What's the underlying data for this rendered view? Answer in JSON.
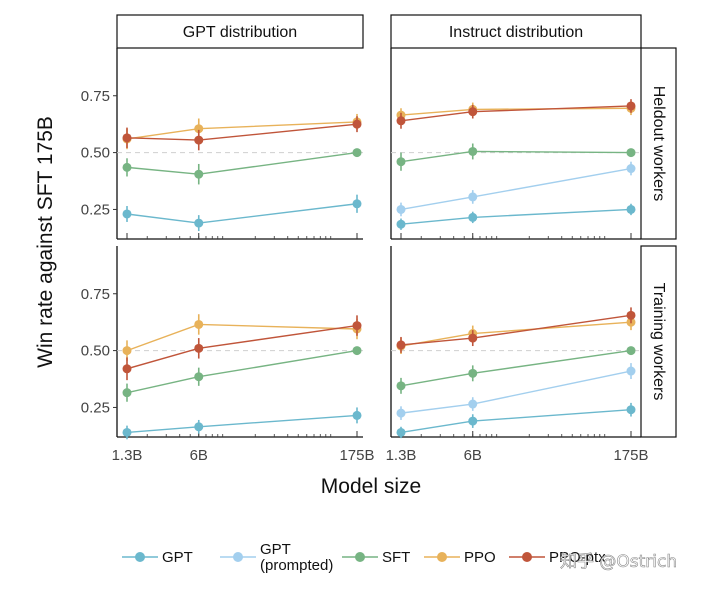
{
  "chart_data": {
    "type": "line",
    "xlabel": "Model size",
    "ylabel": "Win rate against SFT 175B",
    "x_scale": "log",
    "x_ticks": [
      {
        "value": 1.3,
        "label": "1.3B"
      },
      {
        "value": 6,
        "label": "6B"
      },
      {
        "value": 175,
        "label": "175B"
      }
    ],
    "y_ticks": [
      {
        "value": 0.25,
        "label": "0.25"
      },
      {
        "value": 0.5,
        "label": "0.50"
      },
      {
        "value": 0.75,
        "label": "0.75"
      }
    ],
    "ylim": [
      0.12,
      0.96
    ],
    "reference_line": 0.5,
    "columns": [
      "GPT distribution",
      "Instruct distribution"
    ],
    "rows": [
      "Heldout workers",
      "Training workers"
    ],
    "series_styles": [
      {
        "name": "GPT",
        "label": "GPT",
        "color": "#6bb8cd"
      },
      {
        "name": "GPT (prompted)",
        "label": "GPT\n(prompted)",
        "color": "#a3cfee"
      },
      {
        "name": "SFT",
        "label": "SFT",
        "color": "#77b483"
      },
      {
        "name": "PPO",
        "label": "PPO",
        "color": "#e8b25a"
      },
      {
        "name": "PPO-ptx",
        "label": "PPO-ptx",
        "color": "#c0553a"
      }
    ],
    "panels": [
      {
        "row": "Heldout workers",
        "col": "GPT distribution",
        "series": [
          {
            "name": "GPT",
            "x": [
              1.3,
              6,
              175
            ],
            "y": [
              0.23,
              0.19,
              0.275
            ],
            "err": [
              0.035,
              0.035,
              0.04
            ]
          },
          {
            "name": "SFT",
            "x": [
              1.3,
              6,
              175
            ],
            "y": [
              0.435,
              0.405,
              0.5
            ],
            "err": [
              0.04,
              0.045,
              0.01
            ]
          },
          {
            "name": "PPO",
            "x": [
              1.3,
              6,
              175
            ],
            "y": [
              0.56,
              0.605,
              0.635
            ],
            "err": [
              0.045,
              0.045,
              0.035
            ]
          },
          {
            "name": "PPO-ptx",
            "x": [
              1.3,
              6,
              175
            ],
            "y": [
              0.565,
              0.555,
              0.625
            ],
            "err": [
              0.045,
              0.045,
              0.035
            ]
          }
        ]
      },
      {
        "row": "Heldout workers",
        "col": "Instruct distribution",
        "series": [
          {
            "name": "GPT",
            "x": [
              1.3,
              6,
              175
            ],
            "y": [
              0.185,
              0.215,
              0.25
            ],
            "err": [
              0.025,
              0.025,
              0.025
            ]
          },
          {
            "name": "GPT (prompted)",
            "x": [
              1.3,
              6,
              175
            ],
            "y": [
              0.25,
              0.305,
              0.43
            ],
            "err": [
              0.03,
              0.03,
              0.03
            ]
          },
          {
            "name": "SFT",
            "x": [
              1.3,
              6,
              175
            ],
            "y": [
              0.46,
              0.505,
              0.5
            ],
            "err": [
              0.04,
              0.035,
              0.01
            ]
          },
          {
            "name": "PPO",
            "x": [
              1.3,
              6,
              175
            ],
            "y": [
              0.665,
              0.69,
              0.695
            ],
            "err": [
              0.03,
              0.03,
              0.03
            ]
          },
          {
            "name": "PPO-ptx",
            "x": [
              1.3,
              6,
              175
            ],
            "y": [
              0.64,
              0.68,
              0.705
            ],
            "err": [
              0.035,
              0.03,
              0.03
            ]
          }
        ]
      },
      {
        "row": "Training workers",
        "col": "GPT distribution",
        "series": [
          {
            "name": "GPT",
            "x": [
              1.3,
              6,
              175
            ],
            "y": [
              0.14,
              0.165,
              0.215
            ],
            "err": [
              0.03,
              0.03,
              0.035
            ]
          },
          {
            "name": "SFT",
            "x": [
              1.3,
              6,
              175
            ],
            "y": [
              0.315,
              0.385,
              0.5
            ],
            "err": [
              0.04,
              0.04,
              0.01
            ]
          },
          {
            "name": "PPO",
            "x": [
              1.3,
              6,
              175
            ],
            "y": [
              0.5,
              0.615,
              0.595
            ],
            "err": [
              0.045,
              0.045,
              0.045
            ]
          },
          {
            "name": "PPO-ptx",
            "x": [
              1.3,
              6,
              175
            ],
            "y": [
              0.42,
              0.51,
              0.61
            ],
            "err": [
              0.05,
              0.045,
              0.045
            ]
          }
        ]
      },
      {
        "row": "Training workers",
        "col": "Instruct distribution",
        "series": [
          {
            "name": "GPT",
            "x": [
              1.3,
              6,
              175
            ],
            "y": [
              0.14,
              0.19,
              0.24
            ],
            "err": [
              0.025,
              0.03,
              0.03
            ]
          },
          {
            "name": "GPT (prompted)",
            "x": [
              1.3,
              6,
              175
            ],
            "y": [
              0.225,
              0.265,
              0.41
            ],
            "err": [
              0.03,
              0.03,
              0.035
            ]
          },
          {
            "name": "SFT",
            "x": [
              1.3,
              6,
              175
            ],
            "y": [
              0.345,
              0.4,
              0.5
            ],
            "err": [
              0.035,
              0.035,
              0.01
            ]
          },
          {
            "name": "PPO",
            "x": [
              1.3,
              6,
              175
            ],
            "y": [
              0.52,
              0.575,
              0.625
            ],
            "err": [
              0.035,
              0.035,
              0.035
            ]
          },
          {
            "name": "PPO-ptx",
            "x": [
              1.3,
              6,
              175
            ],
            "y": [
              0.525,
              0.555,
              0.655
            ],
            "err": [
              0.035,
              0.035,
              0.035
            ]
          }
        ]
      }
    ]
  },
  "watermark": "知乎 @Ostrich"
}
